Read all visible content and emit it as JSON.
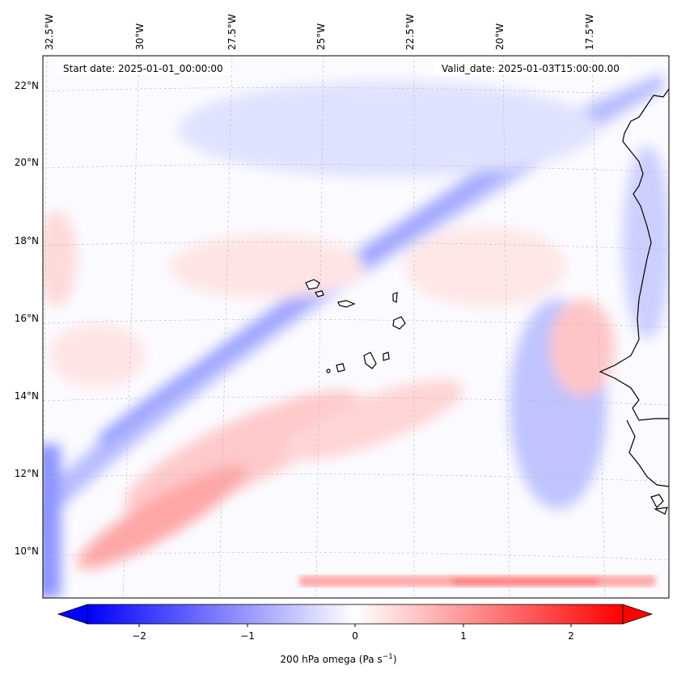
{
  "map": {
    "start_date": "Start date: 2025-01-01_00:00:00",
    "valid_date": "Valid_date: 2025-01-03T15:00:00.00",
    "lon_labels": [
      "32.5°W",
      "30°W",
      "27.5°W",
      "25°W",
      "22.5°W",
      "20°W",
      "17.5°W"
    ],
    "lat_labels": [
      "22°N",
      "20°N",
      "18°N",
      "16°N",
      "14°N",
      "12°N",
      "10°N"
    ],
    "extent": {
      "lon_min": -32.5,
      "lon_max": -15.5,
      "lat_min": 8.8,
      "lat_max": 22.8
    },
    "colors": {
      "negative": "#0000ff",
      "neutral": "#ffffff",
      "positive": "#ff0000",
      "coastline": "#000000"
    }
  },
  "colorbar": {
    "ticks": [
      "−2",
      "−1",
      "0",
      "1",
      "2"
    ],
    "label_main": "200 hPa omega (Pa s",
    "label_sup": "−1",
    "label_end": ")",
    "range": [
      -2.7,
      2.7
    ]
  }
}
